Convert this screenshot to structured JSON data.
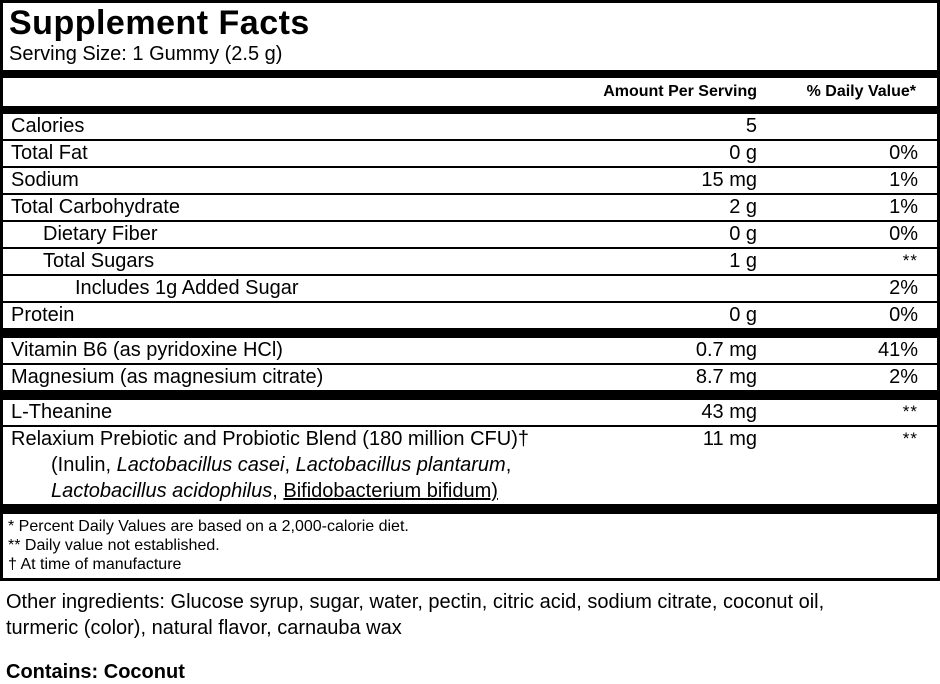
{
  "panel": {
    "title": "Supplement Facts",
    "serving_size": "Serving Size: 1 Gummy (2.5 g)",
    "columns": {
      "amount": "Amount Per Serving",
      "dv": "% Daily Value*"
    },
    "rows": [
      {
        "name": "Calories",
        "amount": "5",
        "dv": "",
        "indent": 0
      },
      {
        "name": "Total Fat",
        "amount": "0 g",
        "dv": "0%",
        "indent": 0
      },
      {
        "name": "Sodium",
        "amount": "15 mg",
        "dv": "1%",
        "indent": 0
      },
      {
        "name": "Total Carbohydrate",
        "amount": "2 g",
        "dv": "1%",
        "indent": 0
      },
      {
        "name": "Dietary Fiber",
        "amount": "0 g",
        "dv": "0%",
        "indent": 1
      },
      {
        "name": "Total Sugars",
        "amount": "1 g",
        "dv": "**",
        "indent": 1
      },
      {
        "name": "Includes 1g Added Sugar",
        "amount": "",
        "dv": "2%",
        "indent": 2
      },
      {
        "name": "Protein",
        "amount": "0 g",
        "dv": "0%",
        "indent": 0,
        "bar_after": true
      },
      {
        "name": "Vitamin B6 (as pyridoxine HCl)",
        "amount": "0.7 mg",
        "dv": "41%",
        "indent": 0
      },
      {
        "name": "Magnesium (as magnesium citrate)",
        "amount": "8.7 mg",
        "dv": "2%",
        "indent": 0,
        "bar_after": true
      },
      {
        "name": "L-Theanine",
        "amount": "43 mg",
        "dv": "**",
        "indent": 0
      },
      {
        "name": "Relaxium Prebiotic and Probiotic Blend (180 million CFU)†",
        "amount": "11 mg",
        "dv": "**",
        "indent": 0,
        "sub_lines": [
          [
            {
              "t": "(Inulin, "
            },
            {
              "t": "Lactobacillus casei",
              "s": "i"
            },
            {
              "t": ", "
            },
            {
              "t": "Lactobacillus plantarum",
              "s": "i"
            },
            {
              "t": ","
            }
          ],
          [
            {
              "t": "Lactobacillus acidophilus",
              "s": "i"
            },
            {
              "t": ", "
            },
            {
              "t": "Bifidobacterium bifidum)",
              "s": "u"
            }
          ]
        ],
        "bar_after": true
      }
    ],
    "footnotes": [
      "* Percent Daily Values are based on a 2,000-calorie diet.",
      "** Daily value not established.",
      "† At time of manufacture"
    ]
  },
  "other": {
    "lines": [
      "Other ingredients: Glucose syrup, sugar, water, pectin, citric acid, sodium citrate, coconut oil,",
      "turmeric (color), natural flavor, carnauba wax"
    ]
  },
  "contains": "Contains: Coconut",
  "colors": {
    "ink": "#000000",
    "paper": "#ffffff"
  }
}
